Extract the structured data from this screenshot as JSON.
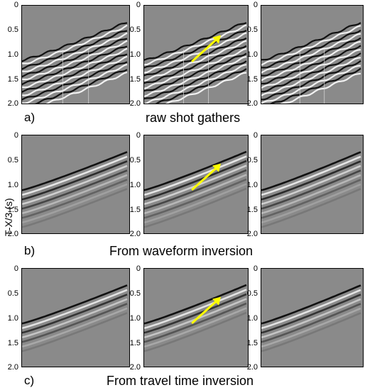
{
  "y_axis_label": "T-X/3 (s)",
  "y_ticks": [
    "0",
    "0.5",
    "1.0",
    "1.5",
    "2.0"
  ],
  "rows": [
    {
      "label": "a)",
      "caption": "raw shot gathers",
      "style": "raw"
    },
    {
      "label": "b)",
      "caption": "From waveform inversion",
      "style": "waveform"
    },
    {
      "label": "c)",
      "caption": "From travel time inversion",
      "style": "traveltime"
    }
  ],
  "arrow_color": "#ffff00",
  "panel_background": "#8a8a8a"
}
